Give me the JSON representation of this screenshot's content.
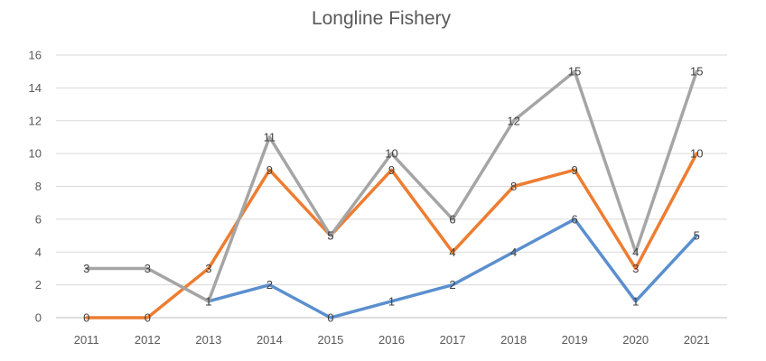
{
  "chart_data": {
    "type": "line",
    "title": "Longline Fishery",
    "xlabel": "",
    "ylabel": "",
    "categories": [
      "2011",
      "2012",
      "2013",
      "2014",
      "2015",
      "2016",
      "2017",
      "2018",
      "2019",
      "2020",
      "2021"
    ],
    "ylim": [
      0,
      16
    ],
    "yticks": [
      0,
      2,
      4,
      6,
      8,
      10,
      12,
      14,
      16
    ],
    "grid": true,
    "legend": "none",
    "series": [
      {
        "color": "#5b8fce",
        "values": [
          null,
          null,
          1,
          2,
          0,
          1,
          2,
          4,
          6,
          1,
          5
        ]
      },
      {
        "color": "#ed7d31",
        "values": [
          0,
          0,
          3,
          9,
          5,
          9,
          4,
          8,
          9,
          3,
          10
        ]
      },
      {
        "color": "#a5a5a5",
        "values": [
          3,
          3,
          1,
          11,
          5,
          10,
          6,
          12,
          15,
          4,
          15
        ]
      }
    ]
  }
}
